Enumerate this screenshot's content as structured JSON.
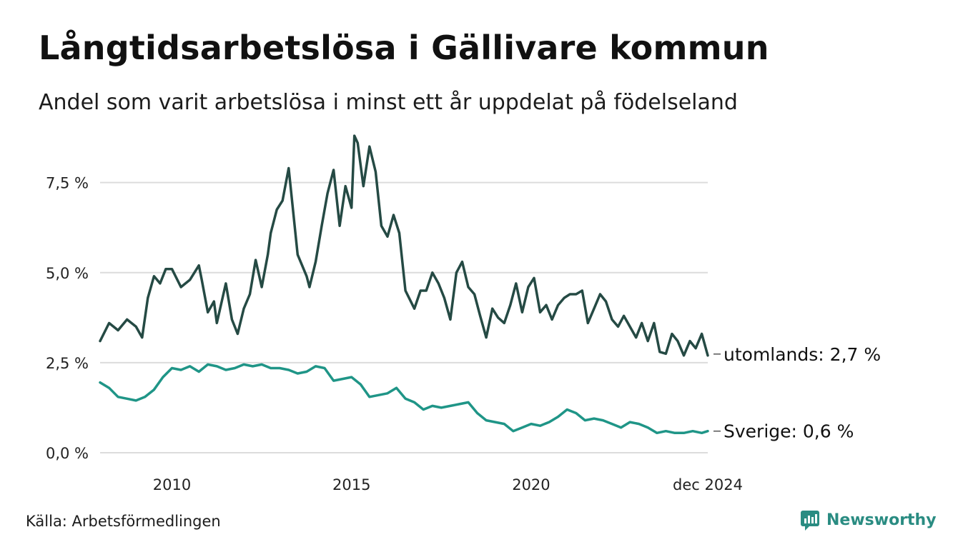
{
  "title": "Långtidsarbetslösa i Gällivare kommun",
  "subtitle": "Andel som varit arbetslösa i minst ett år uppdelat på födelseland",
  "source": "Källa: Arbetsförmedlingen",
  "brand": {
    "name": "Newsworthy",
    "icon": "newsworthy-logo-icon",
    "color": "#2a8c82"
  },
  "chart_data": {
    "type": "line",
    "title": "Långtidsarbetslösa i Gällivare kommun",
    "subtitle": "Andel som varit arbetslösa i minst ett år uppdelat på födelseland",
    "xlabel": "",
    "ylabel": "",
    "xlim": [
      2008.0,
      2024.917
    ],
    "ylim": [
      0,
      9
    ],
    "grid": true,
    "y_ticks": [
      {
        "value": 0,
        "label": "0,0 %"
      },
      {
        "value": 2.5,
        "label": "2,5 %"
      },
      {
        "value": 5,
        "label": "5,0 %"
      },
      {
        "value": 7.5,
        "label": "7,5 %"
      }
    ],
    "x_ticks": [
      {
        "value": 2010,
        "label": "2010"
      },
      {
        "value": 2015,
        "label": "2015"
      },
      {
        "value": 2020,
        "label": "2020"
      },
      {
        "value": 2024.917,
        "label": "dec 2024"
      }
    ],
    "series": [
      {
        "name": "utomlands",
        "end_label": "utomlands: 2,7 %",
        "color": "#254a44",
        "x": [
          2008.0,
          2008.25,
          2008.5,
          2008.75,
          2009.0,
          2009.17,
          2009.33,
          2009.5,
          2009.67,
          2009.83,
          2010.0,
          2010.25,
          2010.5,
          2010.75,
          2010.83,
          2011.0,
          2011.17,
          2011.25,
          2011.5,
          2011.67,
          2011.83,
          2012.0,
          2012.17,
          2012.33,
          2012.5,
          2012.67,
          2012.75,
          2012.92,
          2013.08,
          2013.25,
          2013.5,
          2013.75,
          2013.83,
          2014.0,
          2014.17,
          2014.33,
          2014.5,
          2014.67,
          2014.83,
          2015.0,
          2015.08,
          2015.17,
          2015.33,
          2015.5,
          2015.67,
          2015.83,
          2016.0,
          2016.17,
          2016.33,
          2016.5,
          2016.75,
          2016.92,
          2017.08,
          2017.25,
          2017.42,
          2017.58,
          2017.75,
          2017.92,
          2018.08,
          2018.25,
          2018.42,
          2018.58,
          2018.75,
          2018.92,
          2019.08,
          2019.25,
          2019.42,
          2019.58,
          2019.75,
          2019.92,
          2020.08,
          2020.25,
          2020.42,
          2020.58,
          2020.75,
          2020.92,
          2021.08,
          2021.25,
          2021.42,
          2021.58,
          2021.75,
          2021.92,
          2022.08,
          2022.25,
          2022.42,
          2022.58,
          2022.75,
          2022.92,
          2023.08,
          2023.25,
          2023.42,
          2023.58,
          2023.75,
          2023.92,
          2024.08,
          2024.25,
          2024.42,
          2024.58,
          2024.75,
          2024.917
        ],
        "values": [
          3.1,
          3.6,
          3.4,
          3.7,
          3.5,
          3.2,
          4.3,
          4.9,
          4.7,
          5.1,
          5.1,
          4.6,
          4.8,
          5.2,
          4.8,
          3.9,
          4.2,
          3.6,
          4.7,
          3.7,
          3.3,
          4.0,
          4.4,
          5.35,
          4.6,
          5.5,
          6.1,
          6.75,
          7.0,
          7.9,
          5.5,
          4.9,
          4.6,
          5.3,
          6.3,
          7.2,
          7.85,
          6.3,
          7.4,
          6.8,
          8.8,
          8.6,
          7.4,
          8.5,
          7.8,
          6.3,
          6.0,
          6.6,
          6.1,
          4.5,
          4.0,
          4.5,
          4.5,
          5.0,
          4.7,
          4.3,
          3.7,
          5.0,
          5.3,
          4.6,
          4.4,
          3.8,
          3.2,
          4.0,
          3.75,
          3.6,
          4.1,
          4.7,
          3.9,
          4.6,
          4.85,
          3.9,
          4.1,
          3.7,
          4.1,
          4.3,
          4.4,
          4.4,
          4.5,
          3.6,
          4.0,
          4.4,
          4.2,
          3.7,
          3.5,
          3.8,
          3.5,
          3.2,
          3.6,
          3.1,
          3.6,
          2.8,
          2.75,
          3.3,
          3.1,
          2.7,
          3.1,
          2.9,
          3.3,
          2.7
        ]
      },
      {
        "name": "Sverige",
        "end_label": "Sverige: 0,6 %",
        "color": "#1f9587",
        "x": [
          2008.0,
          2008.25,
          2008.5,
          2008.75,
          2009.0,
          2009.25,
          2009.5,
          2009.75,
          2010.0,
          2010.25,
          2010.5,
          2010.75,
          2011.0,
          2011.25,
          2011.5,
          2011.75,
          2012.0,
          2012.25,
          2012.5,
          2012.75,
          2013.0,
          2013.25,
          2013.5,
          2013.75,
          2014.0,
          2014.25,
          2014.5,
          2014.75,
          2015.0,
          2015.25,
          2015.5,
          2015.75,
          2016.0,
          2016.25,
          2016.5,
          2016.75,
          2017.0,
          2017.25,
          2017.5,
          2017.75,
          2018.0,
          2018.25,
          2018.5,
          2018.75,
          2019.0,
          2019.25,
          2019.5,
          2019.75,
          2020.0,
          2020.25,
          2020.5,
          2020.75,
          2021.0,
          2021.25,
          2021.5,
          2021.75,
          2022.0,
          2022.25,
          2022.5,
          2022.75,
          2023.0,
          2023.25,
          2023.5,
          2023.75,
          2024.0,
          2024.25,
          2024.5,
          2024.75,
          2024.917
        ],
        "values": [
          1.95,
          1.8,
          1.55,
          1.5,
          1.45,
          1.55,
          1.75,
          2.1,
          2.35,
          2.3,
          2.4,
          2.25,
          2.45,
          2.4,
          2.3,
          2.35,
          2.45,
          2.4,
          2.45,
          2.35,
          2.35,
          2.3,
          2.2,
          2.25,
          2.4,
          2.35,
          2.0,
          2.05,
          2.1,
          1.9,
          1.55,
          1.6,
          1.65,
          1.8,
          1.5,
          1.4,
          1.2,
          1.3,
          1.25,
          1.3,
          1.35,
          1.4,
          1.1,
          0.9,
          0.85,
          0.8,
          0.6,
          0.7,
          0.8,
          0.75,
          0.85,
          1.0,
          1.2,
          1.1,
          0.9,
          0.95,
          0.9,
          0.8,
          0.7,
          0.85,
          0.8,
          0.7,
          0.55,
          0.6,
          0.55,
          0.55,
          0.6,
          0.55,
          0.6
        ]
      }
    ]
  }
}
